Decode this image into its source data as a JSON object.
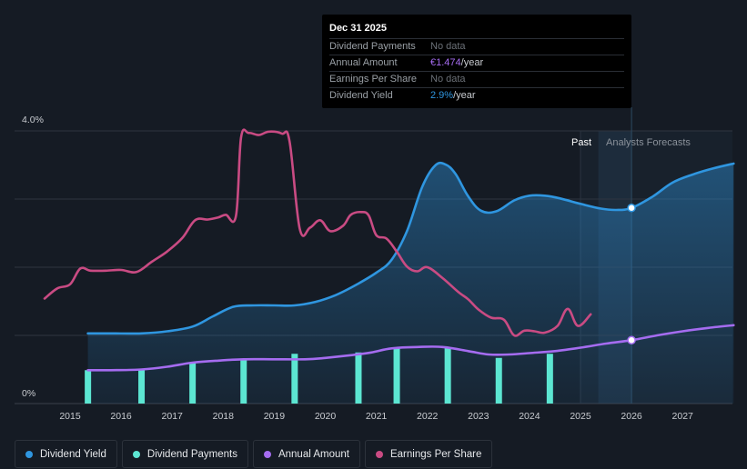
{
  "tooltip": {
    "date": "Dec 31 2025",
    "rows": [
      {
        "label": "Dividend Payments",
        "value": "No data"
      },
      {
        "label": "Annual Amount",
        "value": "€1.474",
        "unit": "/year"
      },
      {
        "label": "Earnings Per Share",
        "value": "No data"
      },
      {
        "label": "Dividend Yield",
        "value": "2.9%",
        "unit": "/year"
      }
    ]
  },
  "legend": [
    {
      "label": "Dividend Yield",
      "color": "#2f96e0"
    },
    {
      "label": "Dividend Payments",
      "color": "#5ce6d2"
    },
    {
      "label": "Annual Amount",
      "color": "#a56cf0"
    },
    {
      "label": "Earnings Per Share",
      "color": "#c94b83"
    }
  ],
  "chart_data": {
    "type": "line",
    "y_axis": {
      "ylim": [
        0,
        4.0
      ],
      "ticks": [
        "4.0%",
        "0%"
      ],
      "unit": "%"
    },
    "x_axis": {
      "xlim": [
        2014.5,
        2028.0
      ],
      "tick_labels": [
        "2015",
        "2016",
        "2017",
        "2018",
        "2019",
        "2020",
        "2021",
        "2022",
        "2023",
        "2024",
        "2025",
        "2026",
        "2027"
      ]
    },
    "labels": {
      "past": "Past",
      "forecast": "Analysts Forecasts"
    },
    "forecast_start": 2025.0,
    "tooltip_date": 2026.0,
    "series": [
      {
        "name": "Dividend Yield",
        "color": "#2f96e0",
        "points": [
          [
            2015.35,
            1.03
          ],
          [
            2015.8,
            1.03
          ],
          [
            2016.4,
            1.03
          ],
          [
            2016.9,
            1.06
          ],
          [
            2017.4,
            1.13
          ],
          [
            2017.8,
            1.28
          ],
          [
            2018.2,
            1.42
          ],
          [
            2018.6,
            1.44
          ],
          [
            2019.0,
            1.44
          ],
          [
            2019.4,
            1.44
          ],
          [
            2019.8,
            1.49
          ],
          [
            2020.2,
            1.59
          ],
          [
            2020.6,
            1.74
          ],
          [
            2021.0,
            1.92
          ],
          [
            2021.3,
            2.11
          ],
          [
            2021.6,
            2.53
          ],
          [
            2021.9,
            3.18
          ],
          [
            2022.15,
            3.49
          ],
          [
            2022.35,
            3.51
          ],
          [
            2022.55,
            3.37
          ],
          [
            2022.8,
            3.04
          ],
          [
            2023.05,
            2.83
          ],
          [
            2023.35,
            2.82
          ],
          [
            2023.7,
            2.98
          ],
          [
            2024.0,
            3.05
          ],
          [
            2024.3,
            3.05
          ],
          [
            2024.6,
            3.01
          ],
          [
            2025.0,
            2.93
          ],
          [
            2025.4,
            2.86
          ],
          [
            2025.7,
            2.84
          ],
          [
            2026.0,
            2.87
          ],
          [
            2026.4,
            3.03
          ],
          [
            2026.8,
            3.24
          ],
          [
            2027.2,
            3.36
          ],
          [
            2027.6,
            3.45
          ],
          [
            2028.0,
            3.52
          ]
        ]
      },
      {
        "name": "Annual Amount",
        "color": "#a56cf0",
        "points": [
          [
            2015.35,
            0.49
          ],
          [
            2015.8,
            0.49
          ],
          [
            2016.4,
            0.5
          ],
          [
            2016.9,
            0.54
          ],
          [
            2017.4,
            0.6
          ],
          [
            2017.9,
            0.63
          ],
          [
            2018.4,
            0.65
          ],
          [
            2019.0,
            0.65
          ],
          [
            2019.6,
            0.65
          ],
          [
            2020.0,
            0.67
          ],
          [
            2020.5,
            0.71
          ],
          [
            2020.9,
            0.75
          ],
          [
            2021.3,
            0.81
          ],
          [
            2021.8,
            0.83
          ],
          [
            2022.3,
            0.83
          ],
          [
            2022.8,
            0.77
          ],
          [
            2023.2,
            0.72
          ],
          [
            2023.6,
            0.72
          ],
          [
            2024.0,
            0.74
          ],
          [
            2024.5,
            0.77
          ],
          [
            2025.0,
            0.82
          ],
          [
            2025.5,
            0.88
          ],
          [
            2026.0,
            0.93
          ],
          [
            2026.5,
            1.0
          ],
          [
            2027.0,
            1.06
          ],
          [
            2027.5,
            1.11
          ],
          [
            2028.0,
            1.15
          ]
        ]
      },
      {
        "name": "Earnings Per Share",
        "color": "#c94b83",
        "points": [
          [
            2014.5,
            1.54
          ],
          [
            2014.75,
            1.69
          ],
          [
            2015.0,
            1.75
          ],
          [
            2015.2,
            1.98
          ],
          [
            2015.4,
            1.95
          ],
          [
            2015.7,
            1.95
          ],
          [
            2016.0,
            1.96
          ],
          [
            2016.3,
            1.93
          ],
          [
            2016.6,
            2.08
          ],
          [
            2016.9,
            2.23
          ],
          [
            2017.2,
            2.43
          ],
          [
            2017.45,
            2.69
          ],
          [
            2017.7,
            2.7
          ],
          [
            2017.9,
            2.73
          ],
          [
            2018.05,
            2.77
          ],
          [
            2018.25,
            2.75
          ],
          [
            2018.35,
            3.9
          ],
          [
            2018.5,
            3.97
          ],
          [
            2018.7,
            3.94
          ],
          [
            2018.9,
            3.99
          ],
          [
            2019.15,
            3.96
          ],
          [
            2019.3,
            3.85
          ],
          [
            2019.5,
            2.56
          ],
          [
            2019.7,
            2.58
          ],
          [
            2019.9,
            2.69
          ],
          [
            2020.1,
            2.53
          ],
          [
            2020.35,
            2.61
          ],
          [
            2020.5,
            2.77
          ],
          [
            2020.7,
            2.81
          ],
          [
            2020.85,
            2.76
          ],
          [
            2021.0,
            2.47
          ],
          [
            2021.2,
            2.42
          ],
          [
            2021.4,
            2.23
          ],
          [
            2021.6,
            2.01
          ],
          [
            2021.8,
            1.94
          ],
          [
            2022.0,
            2.0
          ],
          [
            2022.3,
            1.84
          ],
          [
            2022.6,
            1.64
          ],
          [
            2022.8,
            1.53
          ],
          [
            2023.0,
            1.38
          ],
          [
            2023.25,
            1.26
          ],
          [
            2023.5,
            1.23
          ],
          [
            2023.7,
            1.0
          ],
          [
            2023.9,
            1.07
          ],
          [
            2024.1,
            1.06
          ],
          [
            2024.3,
            1.04
          ],
          [
            2024.55,
            1.14
          ],
          [
            2024.75,
            1.39
          ],
          [
            2024.95,
            1.14
          ],
          [
            2025.2,
            1.31
          ]
        ]
      }
    ],
    "bars": {
      "name": "Dividend Payments",
      "color": "#5ce6d2",
      "values": [
        [
          2015.35,
          0.49
        ],
        [
          2016.4,
          0.49
        ],
        [
          2017.4,
          0.6
        ],
        [
          2018.4,
          0.65
        ],
        [
          2019.4,
          0.73
        ],
        [
          2020.65,
          0.75
        ],
        [
          2021.4,
          0.82
        ],
        [
          2022.4,
          0.82
        ],
        [
          2023.4,
          0.67
        ],
        [
          2024.4,
          0.73
        ]
      ]
    },
    "markers": [
      {
        "series": "Dividend Yield",
        "x": 2026.0,
        "y": 2.87
      },
      {
        "series": "Annual Amount",
        "x": 2026.0,
        "y": 0.93
      }
    ]
  }
}
